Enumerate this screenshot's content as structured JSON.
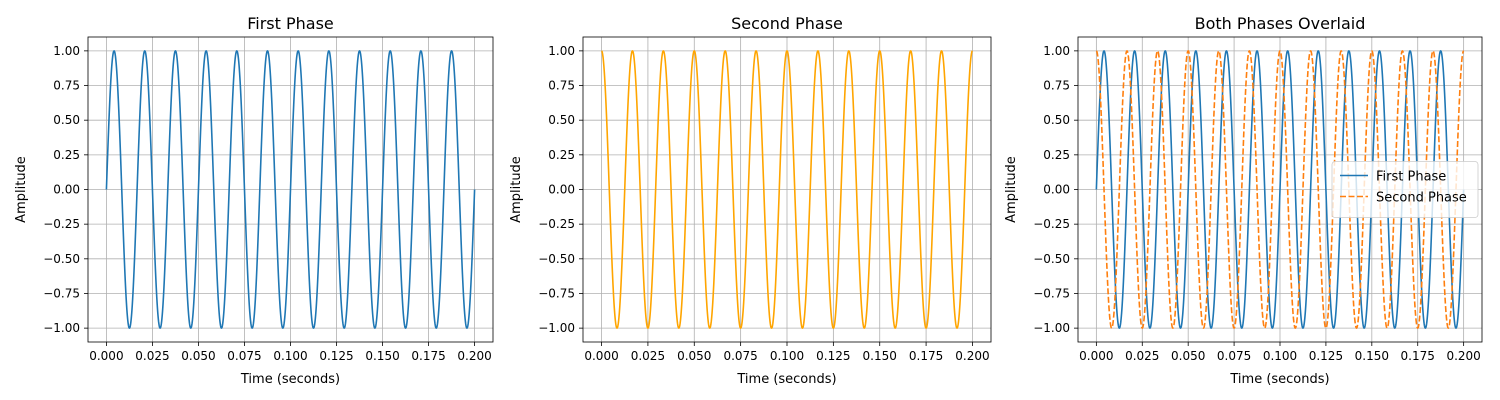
{
  "chart_data": [
    {
      "type": "line",
      "title": "First Phase",
      "xlabel": "Time (seconds)",
      "ylabel": "Amplitude",
      "xlim": [
        -0.01,
        0.21
      ],
      "ylim": [
        -1.1,
        1.1
      ],
      "xticks": [
        0.0,
        0.025,
        0.05,
        0.075,
        0.1,
        0.125,
        0.15,
        0.175,
        0.2
      ],
      "xtick_labels": [
        "0.000",
        "0.025",
        "0.050",
        "0.075",
        "0.100",
        "0.125",
        "0.150",
        "0.175",
        "0.200"
      ],
      "yticks": [
        1.0,
        0.75,
        0.5,
        0.25,
        0.0,
        -0.25,
        -0.5,
        -0.75,
        -1.0
      ],
      "ytick_labels": [
        "1.00",
        "0.75",
        "0.50",
        "0.25",
        "0.00",
        "−0.25",
        "−0.50",
        "−0.75",
        "−1.00"
      ],
      "grid": true,
      "series": [
        {
          "function": "sin",
          "frequency_hz": 60,
          "phase_rad": 0,
          "x_start": 0,
          "x_end": 0.2,
          "color": "#1f77b4",
          "dash": "solid"
        }
      ]
    },
    {
      "type": "line",
      "title": "Second Phase",
      "xlabel": "Time (seconds)",
      "ylabel": "Amplitude",
      "xlim": [
        -0.01,
        0.21
      ],
      "ylim": [
        -1.1,
        1.1
      ],
      "xticks": [
        0.0,
        0.025,
        0.05,
        0.075,
        0.1,
        0.125,
        0.15,
        0.175,
        0.2
      ],
      "xtick_labels": [
        "0.000",
        "0.025",
        "0.050",
        "0.075",
        "0.100",
        "0.125",
        "0.150",
        "0.175",
        "0.200"
      ],
      "yticks": [
        1.0,
        0.75,
        0.5,
        0.25,
        0.0,
        -0.25,
        -0.5,
        -0.75,
        -1.0
      ],
      "ytick_labels": [
        "1.00",
        "0.75",
        "0.50",
        "0.25",
        "0.00",
        "−0.25",
        "−0.50",
        "−0.75",
        "−1.00"
      ],
      "grid": true,
      "series": [
        {
          "function": "cos",
          "frequency_hz": 60,
          "phase_rad": 0,
          "x_start": 0,
          "x_end": 0.2,
          "color": "#ffa500",
          "dash": "solid"
        }
      ]
    },
    {
      "type": "line",
      "title": "Both Phases Overlaid",
      "xlabel": "Time (seconds)",
      "ylabel": "Amplitude",
      "xlim": [
        -0.01,
        0.21
      ],
      "ylim": [
        -1.1,
        1.1
      ],
      "xticks": [
        0.0,
        0.025,
        0.05,
        0.075,
        0.1,
        0.125,
        0.15,
        0.175,
        0.2
      ],
      "xtick_labels": [
        "0.000",
        "0.025",
        "0.050",
        "0.075",
        "0.100",
        "0.125",
        "0.150",
        "0.175",
        "0.200"
      ],
      "yticks": [
        1.0,
        0.75,
        0.5,
        0.25,
        0.0,
        -0.25,
        -0.5,
        -0.75,
        -1.0
      ],
      "ytick_labels": [
        "1.00",
        "0.75",
        "0.50",
        "0.25",
        "0.00",
        "−0.25",
        "−0.50",
        "−0.75",
        "−1.00"
      ],
      "grid": true,
      "legend": "center-right",
      "series": [
        {
          "name": "First Phase",
          "function": "sin",
          "frequency_hz": 60,
          "phase_rad": 0,
          "x_start": 0,
          "x_end": 0.2,
          "color": "#1f77b4",
          "dash": "solid"
        },
        {
          "name": "Second Phase",
          "function": "cos",
          "frequency_hz": 60,
          "phase_rad": 0,
          "x_start": 0,
          "x_end": 0.2,
          "color": "#ff7f0e",
          "dash": "dashed"
        }
      ]
    }
  ]
}
